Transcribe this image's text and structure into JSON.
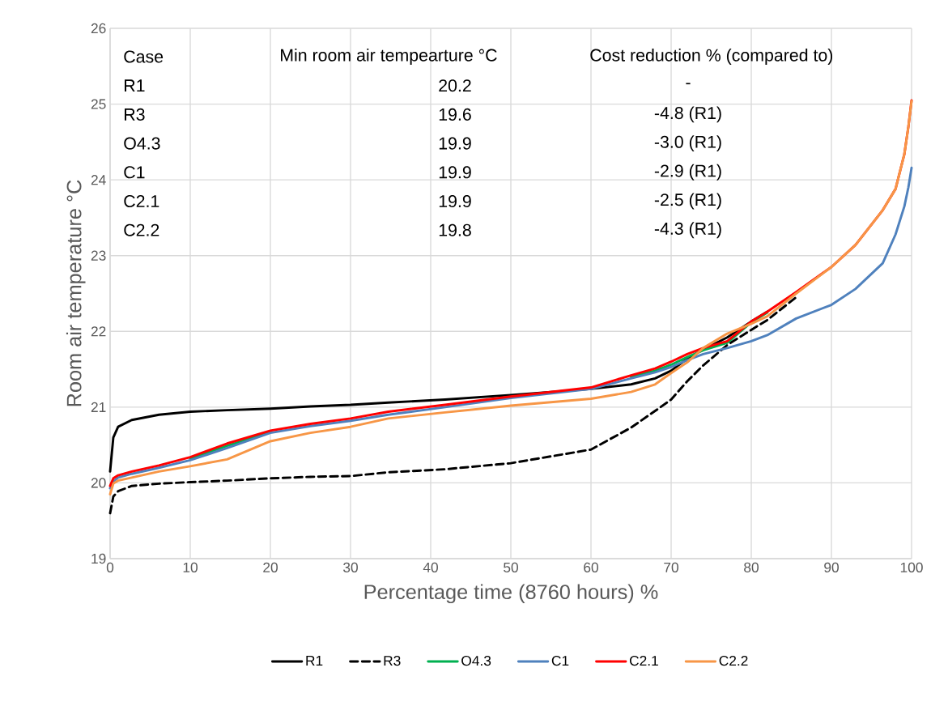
{
  "chart_data": {
    "type": "line",
    "xlabel": "Percentage time (8760 hours) %",
    "ylabel": "Room air temperature °C",
    "x": [
      0,
      0.4,
      1,
      2.7,
      6.1,
      10,
      14.6,
      20,
      25,
      30,
      34.7,
      41.8,
      50,
      60,
      65,
      68,
      70,
      72,
      74,
      77,
      80,
      82,
      85.6,
      90,
      93,
      96.4,
      98,
      99.1,
      99.6,
      100
    ],
    "series": [
      {
        "name": "R1",
        "color": "#000000",
        "values": [
          20.15,
          20.6,
          20.74,
          20.83,
          20.9,
          20.94,
          20.96,
          20.98,
          21.01,
          21.03,
          21.06,
          21.1,
          21.16,
          21.24,
          21.3,
          21.38,
          21.48,
          21.64,
          21.76,
          21.92,
          22.13,
          22.26,
          null,
          null,
          null,
          null,
          null,
          null,
          null,
          null
        ]
      },
      {
        "name": "R3",
        "color": "#000000",
        "line_style": "dashed",
        "values": [
          19.6,
          19.82,
          19.89,
          19.96,
          19.99,
          20.01,
          20.03,
          20.06,
          20.08,
          20.09,
          20.14,
          20.18,
          20.26,
          20.44,
          20.73,
          20.95,
          21.1,
          21.34,
          21.55,
          21.82,
          22.02,
          22.15,
          22.45,
          null,
          null,
          null,
          null,
          null,
          null,
          null
        ]
      },
      {
        "name": "O4.3",
        "color": "#00b050",
        "values": [
          null,
          null,
          null,
          null,
          null,
          20.32,
          20.49,
          20.67,
          null,
          null,
          null,
          null,
          null,
          null,
          21.4,
          21.48,
          21.56,
          21.66,
          21.75,
          21.85,
          22.12,
          22.25,
          null,
          null,
          null,
          null,
          null,
          null,
          null,
          null
        ]
      },
      {
        "name": "C1",
        "color": "#4f81bd",
        "values": [
          19.93,
          20.02,
          20.07,
          20.12,
          20.2,
          20.3,
          20.46,
          20.66,
          20.75,
          20.82,
          20.9,
          21.0,
          21.12,
          21.24,
          21.38,
          21.46,
          21.53,
          21.62,
          21.7,
          21.78,
          21.87,
          21.95,
          22.17,
          22.35,
          22.56,
          22.9,
          23.28,
          23.65,
          23.9,
          24.16
        ]
      },
      {
        "name": "C2.1",
        "color": "#ff0000",
        "values": [
          19.96,
          20.06,
          20.1,
          20.15,
          20.23,
          20.34,
          20.52,
          20.69,
          20.78,
          20.85,
          20.94,
          21.03,
          21.14,
          21.26,
          21.42,
          21.51,
          21.6,
          21.7,
          21.78,
          21.87,
          22.13,
          22.26,
          22.52,
          22.85,
          23.14,
          23.6,
          23.88,
          24.34,
          24.7,
          25.05
        ]
      },
      {
        "name": "C2.2",
        "color": "#f79646",
        "values": [
          19.85,
          19.99,
          20.03,
          20.07,
          20.15,
          20.22,
          20.31,
          20.55,
          20.66,
          20.74,
          20.85,
          20.93,
          21.02,
          21.11,
          21.2,
          21.3,
          21.45,
          21.59,
          21.78,
          21.97,
          22.1,
          22.2,
          22.5,
          22.85,
          23.14,
          23.6,
          23.88,
          24.34,
          24.7,
          25.04
        ]
      }
    ],
    "annotations": [
      "Case",
      "Min room air tempearture °C",
      "Cost reduction % (compared to)",
      "R1",
      "20.2",
      "-",
      "R3",
      "19.6",
      "-4.8 (R1)",
      "O4.3",
      "19.9",
      "-3.0 (R1)",
      "C1",
      "19.9",
      "-2.9 (R1)",
      "C2.1",
      "19.9",
      "-2.5 (R1)",
      "C2.2",
      "19.8",
      "-4.3 (R1)"
    ],
    "xlim": [
      0,
      100
    ],
    "xticks": [
      0,
      10,
      20,
      30,
      40,
      50,
      60,
      70,
      80,
      90,
      100
    ],
    "ylim": [
      19,
      26
    ],
    "yticks": [
      19,
      20,
      21,
      22,
      23,
      24,
      25,
      26
    ],
    "grid": true,
    "legend": "bottom",
    "marker": "none",
    "line_style": "solid"
  }
}
